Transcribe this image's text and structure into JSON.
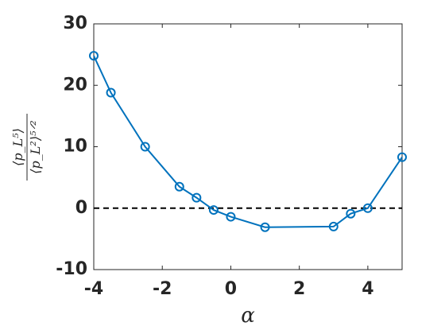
{
  "chart_data": {
    "type": "line",
    "xlabel": "α",
    "ylabel": {
      "numerator": "⟨p_L⁵⟩",
      "denominator": "⟨p_L²⟩⁵ᐟ²"
    },
    "x": [
      -4,
      -3.5,
      -2.5,
      -1.5,
      -1,
      -0.5,
      0,
      1,
      3,
      3.5,
      4,
      5
    ],
    "series": [
      {
        "color": "#0072bd",
        "values": [
          24.8,
          18.8,
          10.0,
          3.5,
          1.7,
          -0.3,
          -1.4,
          -3.1,
          -3.0,
          -0.9,
          0.0,
          8.3
        ]
      }
    ],
    "xlim": [
      -4,
      5
    ],
    "xticks": [
      -4,
      -2,
      0,
      2,
      4
    ],
    "ylim": [
      -10,
      30
    ],
    "yticks": [
      -10,
      0,
      10,
      20,
      30
    ],
    "hline": 0,
    "grid": false
  }
}
